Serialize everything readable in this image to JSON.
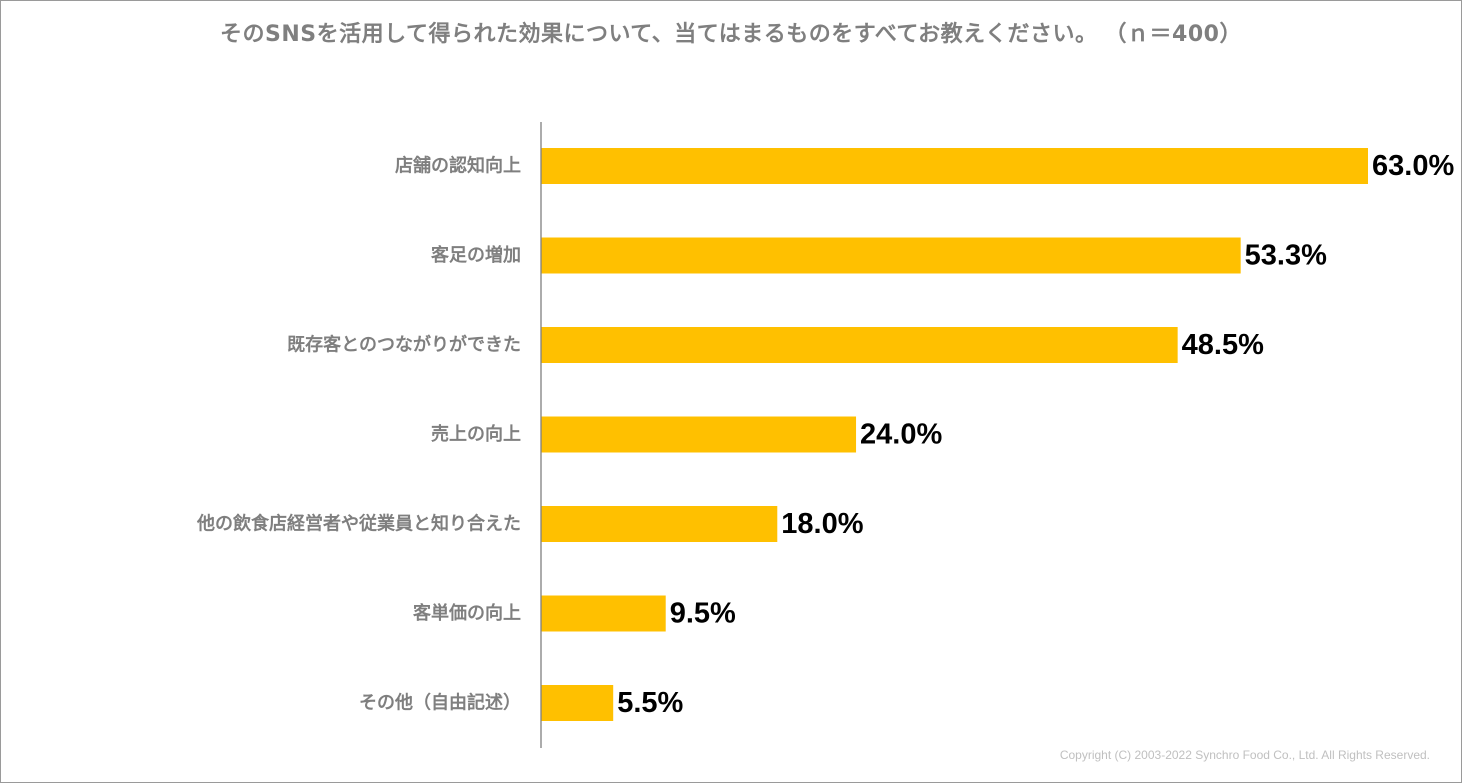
{
  "chart_data": {
    "type": "bar",
    "orientation": "horizontal",
    "title": "そのSNSを活用して得られた効果について、当てはまるものをすべてお教えください。",
    "sample_size": "（ｎ＝400）",
    "categories": [
      "店舗の認知向上",
      "客足の増加",
      "既存客とのつながりができた",
      "売上の向上",
      "他の飲食店経営者や従業員と知り合えた",
      "客単価の向上",
      "その他（自由記述）"
    ],
    "values": [
      63.0,
      53.3,
      48.5,
      24.0,
      18.0,
      9.5,
      5.5
    ],
    "value_labels": [
      "63.0%",
      "53.3%",
      "48.5%",
      "24.0%",
      "18.0%",
      "9.5%",
      "5.5%"
    ],
    "unit": "%",
    "xlim": [
      0,
      63
    ],
    "grid": false,
    "legend": "none",
    "bar_color": "#FFC000"
  },
  "footer": {
    "copyright": "Copyright (C) 2003-2022   Synchro Food Co., Ltd. All Rights Reserved."
  }
}
